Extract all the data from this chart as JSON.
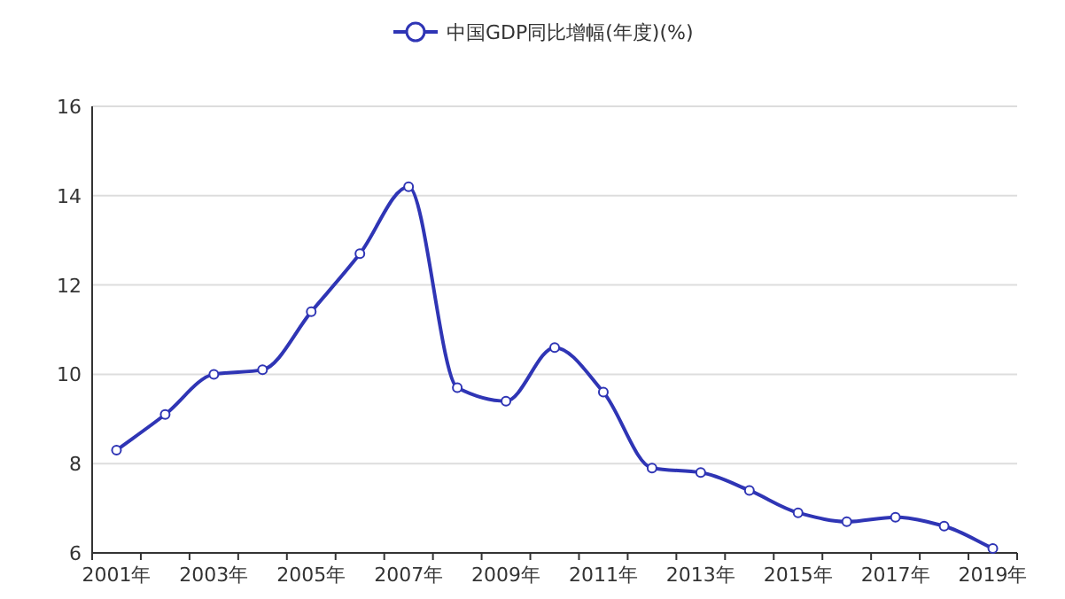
{
  "chart_data": {
    "type": "line",
    "categories": [
      "2001年",
      null,
      "2003年",
      null,
      "2005年",
      null,
      "2007年",
      null,
      "2009年",
      null,
      "2011年",
      null,
      "2013年",
      null,
      "2015年",
      null,
      "2017年",
      null,
      "2019年"
    ],
    "series": [
      {
        "name": "中国GDP同比增幅(年度)(%)",
        "color": "#2f35b5",
        "values": [
          8.3,
          9.1,
          10.0,
          10.1,
          11.4,
          12.7,
          14.2,
          9.7,
          9.4,
          10.6,
          9.6,
          7.9,
          7.8,
          7.4,
          6.9,
          6.7,
          6.8,
          6.6,
          6.1
        ]
      }
    ],
    "ylim": [
      6,
      16
    ],
    "yticks": [
      6,
      8,
      10,
      12,
      14,
      16
    ],
    "grid": "y",
    "legend": "top",
    "marker": "circle",
    "line_style": "solid"
  }
}
